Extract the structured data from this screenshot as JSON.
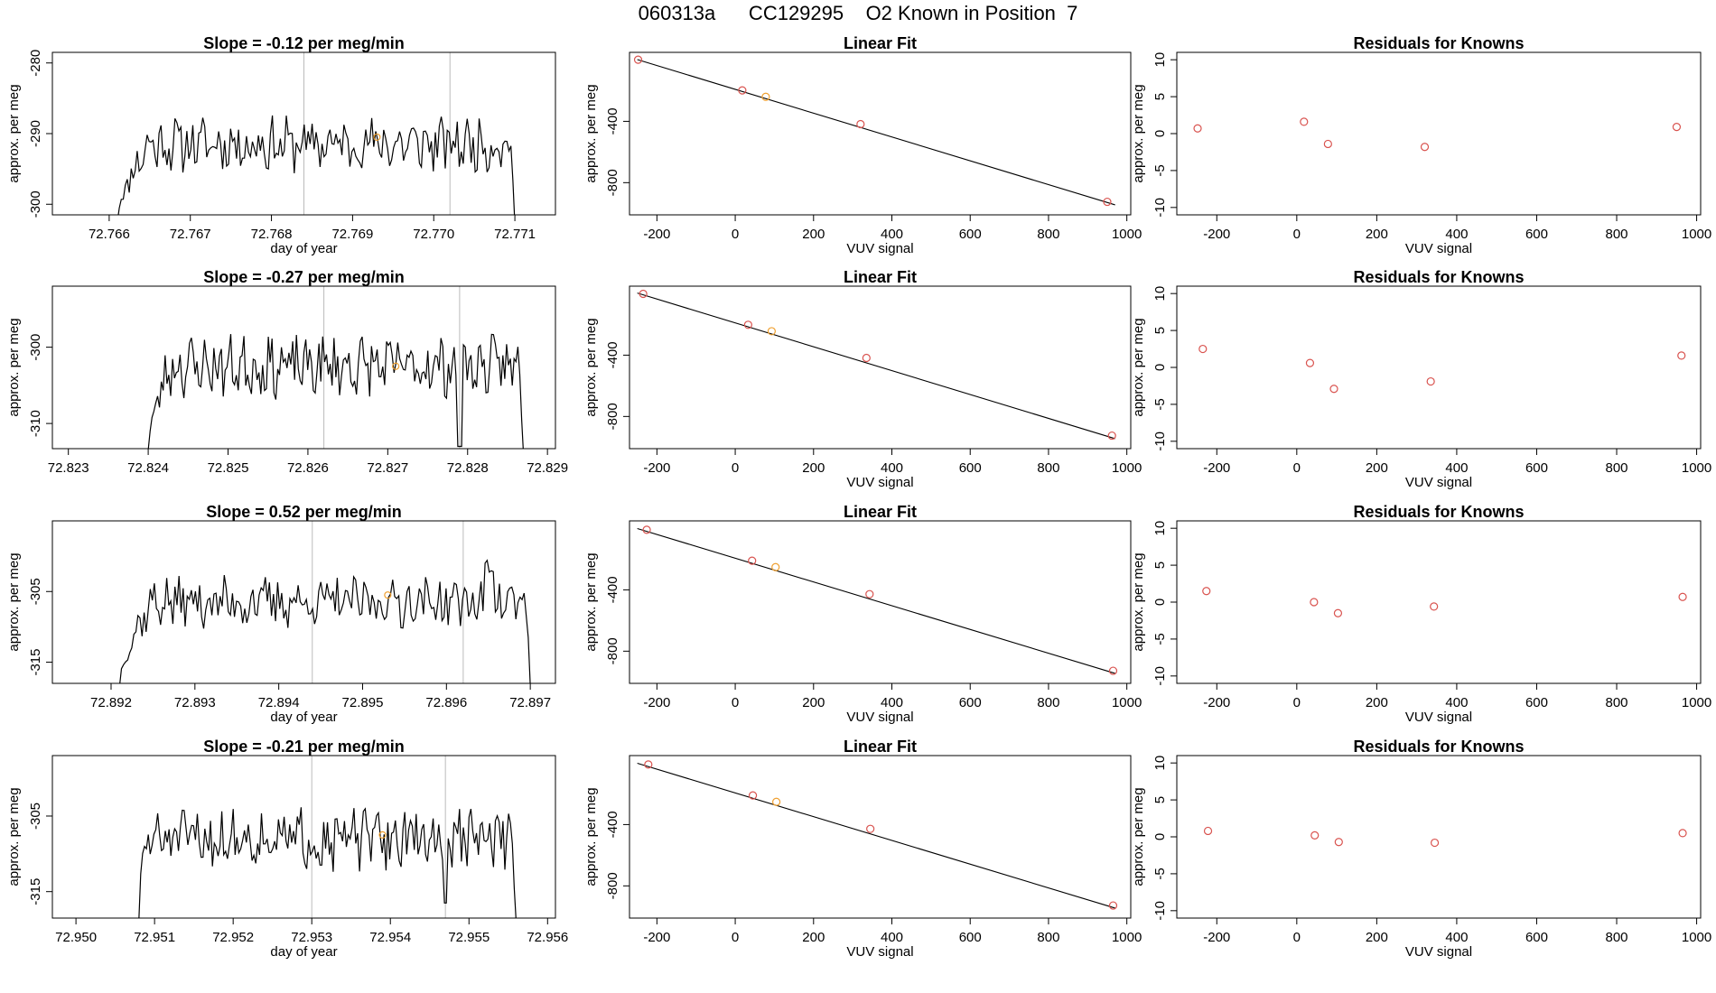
{
  "page_title": "060313a      CC129295    O2 Known in Position  7",
  "colors": {
    "line": "#000000",
    "axis": "#000000",
    "point_red": "#d9534f",
    "point_orange": "#f0a030",
    "vline": "#bbbbbb"
  },
  "chart_data": [
    {
      "row": 0,
      "col": 0,
      "type": "line",
      "title": "Slope =  -0.12  per meg/min",
      "xlabel": "day of year",
      "ylabel": "approx. per meg",
      "xlim": [
        72.7653,
        72.7715
      ],
      "ylim": [
        -301.5,
        -278.5
      ],
      "xticks": [
        72.766,
        72.767,
        72.768,
        72.769,
        72.77,
        72.771
      ],
      "xtick_labels": [
        "72.766",
        "72.767",
        "72.768",
        "72.769",
        "72.770",
        "72.771"
      ],
      "yticks": [
        -300,
        -290,
        -280
      ],
      "ytick_labels": [
        "-300",
        "-290",
        "-280"
      ],
      "vlines": [
        72.7684,
        72.7702
      ],
      "series": {
        "x_start": 72.7661,
        "x_end": 72.771,
        "base": -291.5,
        "amp": 3.2,
        "seed": 11,
        "start_y": -302.5,
        "end_y": -303.0,
        "ramp_frac": 0.08
      },
      "marker": {
        "x": 72.7693,
        "y": -290.5
      }
    },
    {
      "row": 0,
      "col": 1,
      "type": "scatter",
      "title": "Linear Fit",
      "xlabel": "VUV signal",
      "ylabel": "approx. per meg",
      "xlim": [
        -270,
        1010
      ],
      "ylim": [
        -1010,
        50
      ],
      "xticks": [
        -200,
        0,
        200,
        400,
        600,
        800,
        1000
      ],
      "xtick_labels": [
        "-200",
        "0",
        "200",
        "400",
        "600",
        "800",
        "1000"
      ],
      "yticks": [
        -800,
        -400
      ],
      "ytick_labels": [
        "-800",
        "-400"
      ],
      "fit_line": {
        "x": [
          -250,
          970
        ],
        "y": [
          3,
          -945
        ]
      },
      "points": [
        {
          "x": -248,
          "y": 2,
          "color": "red"
        },
        {
          "x": 18,
          "y": -198,
          "color": "red"
        },
        {
          "x": 78,
          "y": -240,
          "color": "orange"
        },
        {
          "x": 320,
          "y": -418,
          "color": "red"
        },
        {
          "x": 950,
          "y": -925,
          "color": "red"
        }
      ]
    },
    {
      "row": 0,
      "col": 2,
      "type": "scatter",
      "title": "Residuals for Knowns",
      "xlabel": "VUV signal",
      "ylabel": "approx. per meg",
      "xlim": [
        -300,
        1010
      ],
      "ylim": [
        -11,
        11
      ],
      "xticks": [
        -200,
        0,
        200,
        400,
        600,
        800,
        1000
      ],
      "xtick_labels": [
        "-200",
        "0",
        "200",
        "400",
        "600",
        "800",
        "1000"
      ],
      "yticks": [
        -10,
        -5,
        0,
        5,
        10
      ],
      "ytick_labels": [
        "-10",
        "-5",
        "0",
        "5",
        "10"
      ],
      "points": [
        {
          "x": -248,
          "y": 0.7,
          "color": "red"
        },
        {
          "x": 18,
          "y": 1.6,
          "color": "red"
        },
        {
          "x": 78,
          "y": -1.4,
          "color": "red"
        },
        {
          "x": 320,
          "y": -1.8,
          "color": "red"
        },
        {
          "x": 950,
          "y": 0.9,
          "color": "red"
        }
      ]
    },
    {
      "row": 1,
      "col": 0,
      "type": "line",
      "title": "Slope =  -0.27  per meg/min",
      "xlabel": "",
      "ylabel": "approx. per meg",
      "xlim": [
        72.8228,
        72.8291
      ],
      "ylim": [
        -313.3,
        -292.0
      ],
      "xticks": [
        72.823,
        72.824,
        72.825,
        72.826,
        72.827,
        72.828,
        72.829
      ],
      "xtick_labels": [
        "72.823",
        "72.824",
        "72.825",
        "72.826",
        "72.827",
        "72.828",
        "72.829"
      ],
      "yticks": [
        -310,
        -300
      ],
      "ytick_labels": [
        "-310",
        "-300"
      ],
      "vlines": [
        72.8262,
        72.8279
      ],
      "series": {
        "x_start": 72.824,
        "x_end": 72.8287,
        "base": -302.5,
        "amp": 3.3,
        "seed": 23,
        "start_y": -313.5,
        "end_y": -314.0,
        "ramp_frac": 0.06,
        "dip_x": 72.8279,
        "dip_y": -313.0
      },
      "marker": {
        "x": 72.8271,
        "y": -302.5
      }
    },
    {
      "row": 1,
      "col": 1,
      "type": "scatter",
      "title": "Linear Fit",
      "xlabel": "VUV signal",
      "ylabel": "approx. per meg",
      "xlim": [
        -270,
        1010
      ],
      "ylim": [
        -1010,
        50
      ],
      "xticks": [
        -200,
        0,
        200,
        400,
        600,
        800,
        1000
      ],
      "xtick_labels": [
        "-200",
        "0",
        "200",
        "400",
        "600",
        "800",
        "1000"
      ],
      "yticks": [
        -800,
        -400
      ],
      "ytick_labels": [
        "-800",
        "-400"
      ],
      "fit_line": {
        "x": [
          -250,
          970
        ],
        "y": [
          5,
          -945
        ]
      },
      "points": [
        {
          "x": -235,
          "y": 0,
          "color": "red"
        },
        {
          "x": 33,
          "y": -202,
          "color": "red"
        },
        {
          "x": 93,
          "y": -244,
          "color": "orange"
        },
        {
          "x": 335,
          "y": -418,
          "color": "red"
        },
        {
          "x": 962,
          "y": -925,
          "color": "red"
        }
      ]
    },
    {
      "row": 1,
      "col": 2,
      "type": "scatter",
      "title": "Residuals for Knowns",
      "xlabel": "VUV signal",
      "ylabel": "approx. per meg",
      "xlim": [
        -300,
        1010
      ],
      "ylim": [
        -11,
        11
      ],
      "xticks": [
        -200,
        0,
        200,
        400,
        600,
        800,
        1000
      ],
      "xtick_labels": [
        "-200",
        "0",
        "200",
        "400",
        "600",
        "800",
        "1000"
      ],
      "yticks": [
        -10,
        -5,
        0,
        5,
        10
      ],
      "ytick_labels": [
        "-10",
        "-5",
        "0",
        "5",
        "10"
      ],
      "points": [
        {
          "x": -235,
          "y": 2.5,
          "color": "red"
        },
        {
          "x": 33,
          "y": 0.6,
          "color": "red"
        },
        {
          "x": 93,
          "y": -2.9,
          "color": "red"
        },
        {
          "x": 335,
          "y": -1.9,
          "color": "red"
        },
        {
          "x": 962,
          "y": 1.6,
          "color": "red"
        }
      ]
    },
    {
      "row": 2,
      "col": 0,
      "type": "line",
      "title": "Slope =  0.52  per meg/min",
      "xlabel": "day of year",
      "ylabel": "approx. per meg",
      "xlim": [
        72.8913,
        72.8973
      ],
      "ylim": [
        -318.0,
        -295.0
      ],
      "xticks": [
        72.892,
        72.893,
        72.894,
        72.895,
        72.896,
        72.897
      ],
      "xtick_labels": [
        "72.892",
        "72.893",
        "72.894",
        "72.895",
        "72.896",
        "72.897"
      ],
      "yticks": [
        -315,
        -305
      ],
      "ytick_labels": [
        "-315",
        "-305"
      ],
      "vlines": [
        72.8944,
        72.8962
      ],
      "series": {
        "x_start": 72.8921,
        "x_end": 72.897,
        "base": -306.5,
        "amp": 3.0,
        "seed": 37,
        "start_y": -318.5,
        "end_y": -318.5,
        "ramp_frac": 0.08,
        "bump_x": 72.8965,
        "bump_y": -301.5
      },
      "marker": {
        "x": 72.8953,
        "y": -305.5
      }
    },
    {
      "row": 2,
      "col": 1,
      "type": "scatter",
      "title": "Linear Fit",
      "xlabel": "VUV signal",
      "ylabel": "approx. per meg",
      "xlim": [
        -270,
        1010
      ],
      "ylim": [
        -1010,
        50
      ],
      "xticks": [
        -200,
        0,
        200,
        400,
        600,
        800,
        1000
      ],
      "xtick_labels": [
        "-200",
        "0",
        "200",
        "400",
        "600",
        "800",
        "1000"
      ],
      "yticks": [
        -800,
        -400
      ],
      "ytick_labels": [
        "-800",
        "-400"
      ],
      "fit_line": {
        "x": [
          -250,
          970
        ],
        "y": [
          0,
          -945
        ]
      },
      "points": [
        {
          "x": -226,
          "y": -8,
          "color": "red"
        },
        {
          "x": 43,
          "y": -210,
          "color": "red"
        },
        {
          "x": 103,
          "y": -252,
          "color": "orange"
        },
        {
          "x": 343,
          "y": -428,
          "color": "red"
        },
        {
          "x": 965,
          "y": -928,
          "color": "red"
        }
      ]
    },
    {
      "row": 2,
      "col": 2,
      "type": "scatter",
      "title": "Residuals for Knowns",
      "xlabel": "VUV signal",
      "ylabel": "approx. per meg",
      "xlim": [
        -300,
        1010
      ],
      "ylim": [
        -11,
        11
      ],
      "xticks": [
        -200,
        0,
        200,
        400,
        600,
        800,
        1000
      ],
      "xtick_labels": [
        "-200",
        "0",
        "200",
        "400",
        "600",
        "800",
        "1000"
      ],
      "yticks": [
        -10,
        -5,
        0,
        5,
        10
      ],
      "ytick_labels": [
        "-10",
        "-5",
        "0",
        "5",
        "10"
      ],
      "points": [
        {
          "x": -226,
          "y": 1.5,
          "color": "red"
        },
        {
          "x": 43,
          "y": 0.0,
          "color": "red"
        },
        {
          "x": 103,
          "y": -1.5,
          "color": "red"
        },
        {
          "x": 343,
          "y": -0.6,
          "color": "red"
        },
        {
          "x": 965,
          "y": 0.7,
          "color": "red"
        }
      ]
    },
    {
      "row": 3,
      "col": 0,
      "type": "line",
      "title": "Slope =  -0.21  per meg/min",
      "xlabel": "day of year",
      "ylabel": "approx. per meg",
      "xlim": [
        72.9497,
        72.9561
      ],
      "ylim": [
        -318.5,
        -297.0
      ],
      "xticks": [
        72.95,
        72.951,
        72.952,
        72.953,
        72.954,
        72.955,
        72.956
      ],
      "xtick_labels": [
        "72.950",
        "72.951",
        "72.952",
        "72.953",
        "72.954",
        "72.955",
        "72.956"
      ],
      "yticks": [
        -315,
        -305
      ],
      "ytick_labels": [
        "-315",
        "-305"
      ],
      "vlines": [
        72.953,
        72.9547
      ],
      "series": {
        "x_start": 72.9508,
        "x_end": 72.9556,
        "base": -308.0,
        "amp": 3.3,
        "seed": 51,
        "start_y": -319.0,
        "end_y": -319.0,
        "ramp_frac": 0.02,
        "dip_x": 72.9547,
        "dip_y": -316.5
      },
      "marker": {
        "x": 72.9539,
        "y": -307.5
      }
    },
    {
      "row": 3,
      "col": 1,
      "type": "scatter",
      "title": "Linear Fit",
      "xlabel": "VUV signal",
      "ylabel": "approx. per meg",
      "xlim": [
        -270,
        1010
      ],
      "ylim": [
        -1010,
        50
      ],
      "xticks": [
        -200,
        0,
        200,
        400,
        600,
        800,
        1000
      ],
      "xtick_labels": [
        "-200",
        "0",
        "200",
        "400",
        "600",
        "800",
        "1000"
      ],
      "yticks": [
        -800,
        -400
      ],
      "ytick_labels": [
        "-800",
        "-400"
      ],
      "fit_line": {
        "x": [
          -250,
          970
        ],
        "y": [
          0,
          -945
        ]
      },
      "points": [
        {
          "x": -222,
          "y": -8,
          "color": "red"
        },
        {
          "x": 45,
          "y": -210,
          "color": "red"
        },
        {
          "x": 105,
          "y": -252,
          "color": "orange"
        },
        {
          "x": 345,
          "y": -428,
          "color": "red"
        },
        {
          "x": 965,
          "y": -928,
          "color": "red"
        }
      ]
    },
    {
      "row": 3,
      "col": 2,
      "type": "scatter",
      "title": "Residuals for Knowns",
      "xlabel": "VUV signal",
      "ylabel": "approx. per meg",
      "xlim": [
        -300,
        1010
      ],
      "ylim": [
        -11,
        11
      ],
      "xticks": [
        -200,
        0,
        200,
        400,
        600,
        800,
        1000
      ],
      "xtick_labels": [
        "-200",
        "0",
        "200",
        "400",
        "600",
        "800",
        "1000"
      ],
      "yticks": [
        -10,
        -5,
        0,
        5,
        10
      ],
      "ytick_labels": [
        "-10",
        "-5",
        "0",
        "5",
        "10"
      ],
      "points": [
        {
          "x": -222,
          "y": 0.8,
          "color": "red"
        },
        {
          "x": 45,
          "y": 0.2,
          "color": "red"
        },
        {
          "x": 105,
          "y": -0.7,
          "color": "red"
        },
        {
          "x": 345,
          "y": -0.8,
          "color": "red"
        },
        {
          "x": 965,
          "y": 0.5,
          "color": "red"
        }
      ]
    }
  ]
}
